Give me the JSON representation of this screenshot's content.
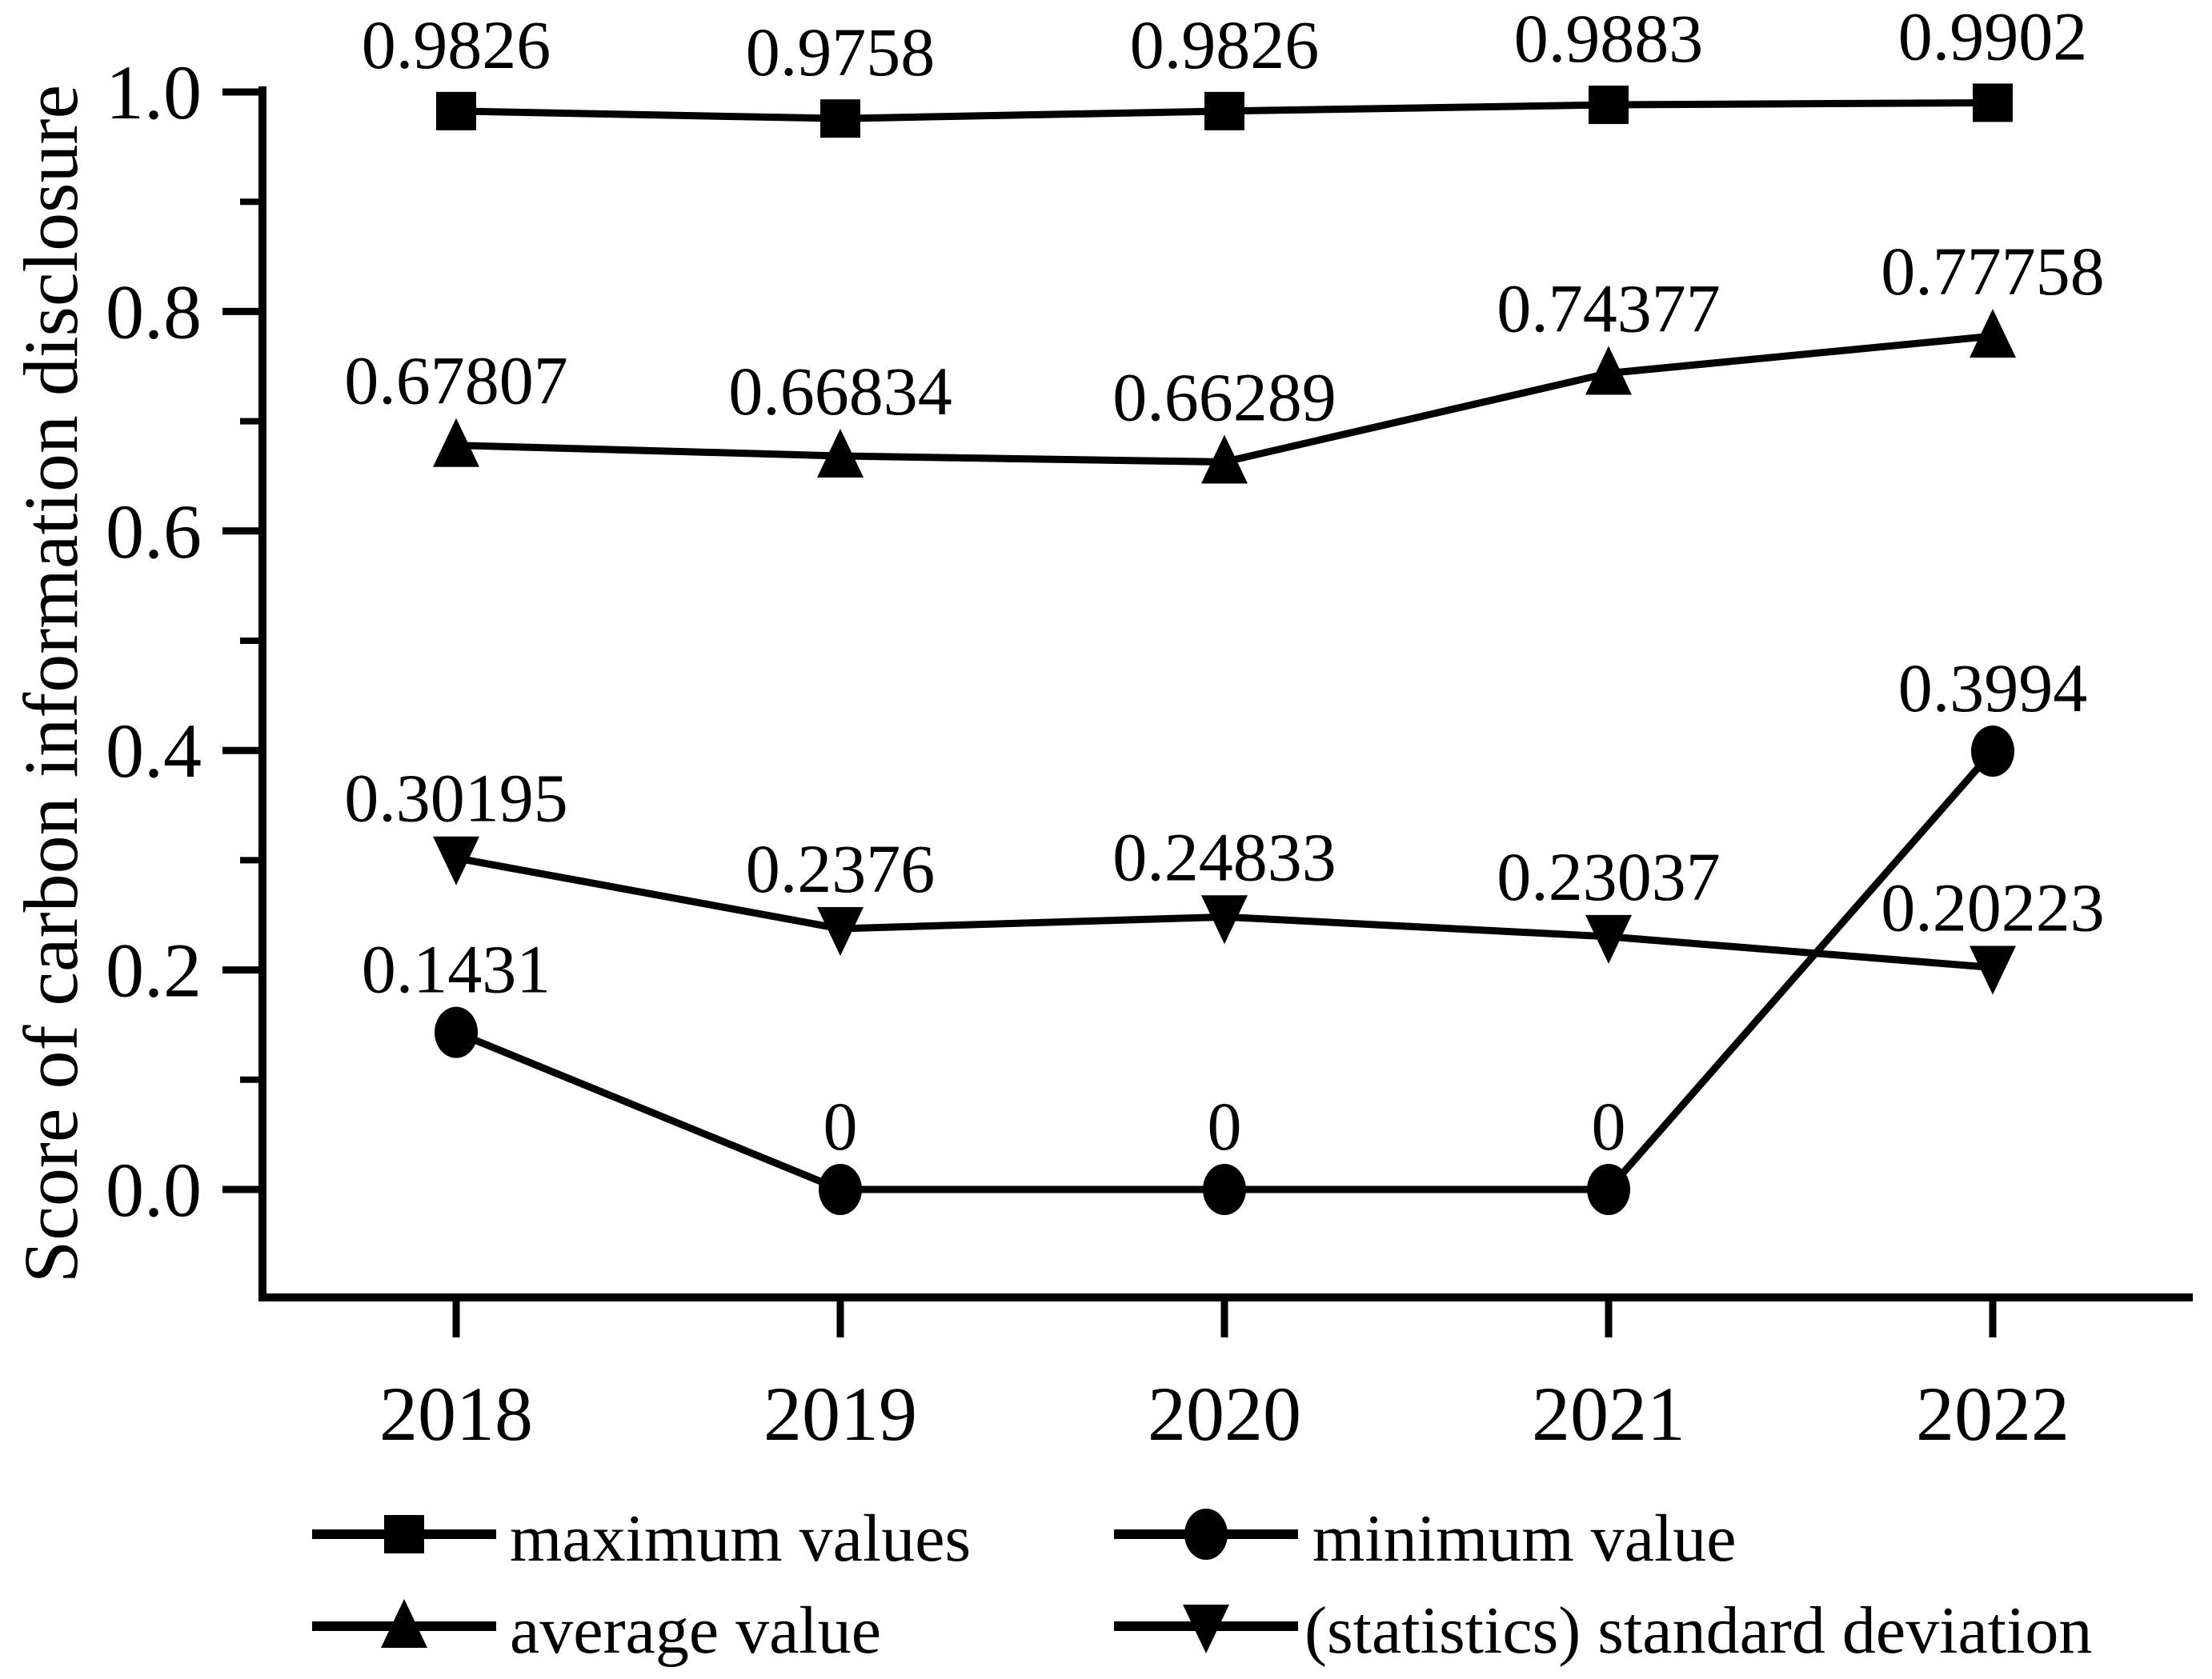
{
  "chart_data": {
    "type": "line",
    "title": "",
    "xlabel": "",
    "ylabel": "Score of carbon information disclosure",
    "categories": [
      "2018",
      "2019",
      "2020",
      "2021",
      "2022"
    ],
    "series": [
      {
        "name": "maximum values",
        "marker": "square",
        "values": [
          0.9826,
          0.9758,
          0.9826,
          0.9883,
          0.9902
        ],
        "point_labels": [
          "0.9826",
          "0.9758",
          "0.9826",
          "0.9883",
          "0.9902"
        ]
      },
      {
        "name": "average value",
        "marker": "triangle-up",
        "values": [
          0.67807,
          0.66834,
          0.66289,
          0.74377,
          0.77758
        ],
        "point_labels": [
          "0.67807",
          "0.66834",
          "0.66289",
          "0.74377",
          "0.77758"
        ]
      },
      {
        "name": "(statistics) standard deviation",
        "marker": "triangle-down",
        "values": [
          0.30195,
          0.2376,
          0.24833,
          0.23037,
          0.20223
        ],
        "point_labels": [
          "0.30195",
          "0.2376",
          "0.24833",
          "0.23037",
          "0.20223"
        ]
      },
      {
        "name": "minimum value",
        "marker": "circle",
        "values": [
          0.1431,
          0,
          0,
          0,
          0.3994
        ],
        "point_labels": [
          "0.1431",
          "0",
          "0",
          "0",
          "0.3994"
        ]
      }
    ],
    "ylim": [
      -0.098,
      1.004
    ],
    "yticks": {
      "major": [
        0.0,
        0.2,
        0.4,
        0.6,
        0.8,
        1.0
      ],
      "major_labels": [
        "0.0",
        "0.2",
        "0.4",
        "0.6",
        "0.8",
        "1.0"
      ],
      "minor": [
        0.1,
        0.3,
        0.5,
        0.7,
        0.9
      ]
    },
    "grid": false,
    "legend": {
      "position": "bottom",
      "rows": [
        [
          "maximum values",
          "minimum value"
        ],
        [
          "average value",
          "(statistics) standard deviation"
        ]
      ]
    },
    "colors": {
      "ink": "#000000",
      "background": "#ffffff"
    }
  }
}
